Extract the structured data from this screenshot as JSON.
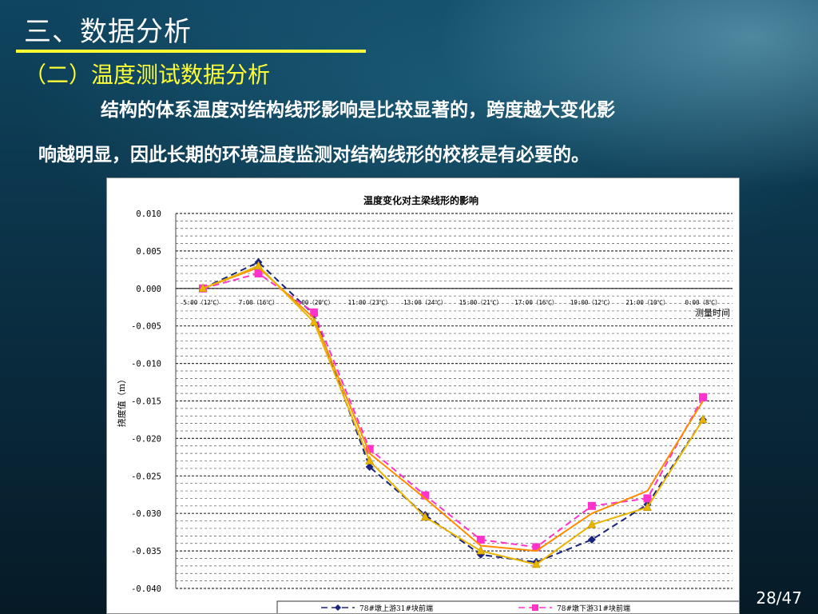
{
  "slide": {
    "section_title": "三、数据分析",
    "subsection_title": "（二）温度测试数据分析",
    "paragraph_line1": "结构的体系温度对结构线形影响是比较显著的，跨度越大变化影",
    "paragraph_line2": "响越明显，因此长期的环境温度监测对结构线形的校核是有必要的。",
    "page_number": "28/47"
  },
  "chart_data": {
    "type": "line",
    "title": "温度变化对主梁线形的影响",
    "xlabel": "测量时间",
    "ylabel": "挠度值（m）",
    "ylim": [
      -0.04,
      0.01
    ],
    "yticks": [
      0.01,
      0.005,
      0.0,
      -0.005,
      -0.01,
      -0.015,
      -0.02,
      -0.025,
      -0.03,
      -0.035,
      -0.04
    ],
    "ytick_labels": [
      "0.010",
      "0.005",
      "0.000",
      "-0.005",
      "-0.010",
      "-0.015",
      "-0.020",
      "-0.025",
      "-0.030",
      "-0.035",
      "-0.040"
    ],
    "categories": [
      "5:00（12℃）",
      "7:00（16℃）",
      "9:00（20℃）",
      "11:00（23℃）",
      "13:00（24℃）",
      "15:00（21℃）",
      "17:00（16℃）",
      "19:00（12℃）",
      "21:00（10℃）",
      "0:00（8℃）"
    ],
    "grid": true,
    "legend_position": "bottom",
    "series": [
      {
        "name": "78#墩上游31#块前端",
        "color": "#1a237e",
        "dash": "8,5",
        "marker": "diamond",
        "values": [
          0.0,
          0.0035,
          -0.0035,
          -0.0238,
          -0.0302,
          -0.0355,
          -0.0365,
          -0.0335,
          -0.0288,
          -0.0175
        ]
      },
      {
        "name": "78#墩下游31#块前端",
        "color": "#ff33cc",
        "dash": "8,5",
        "marker": "square",
        "values": [
          0.0,
          0.002,
          -0.0032,
          -0.0214,
          -0.0276,
          -0.0335,
          -0.0345,
          -0.029,
          -0.028,
          -0.0145
        ]
      },
      {
        "name": "",
        "color": "#ff8c00",
        "dash": "",
        "marker": "none",
        "values": [
          0.0,
          0.0028,
          -0.004,
          -0.022,
          -0.028,
          -0.0343,
          -0.035,
          -0.03,
          -0.027,
          -0.015
        ]
      },
      {
        "name": "",
        "color": "#e8b400",
        "dash": "",
        "marker": "triangle",
        "values": [
          0.0,
          0.003,
          -0.0045,
          -0.023,
          -0.0305,
          -0.035,
          -0.0368,
          -0.0315,
          -0.0292,
          -0.0175
        ]
      }
    ]
  }
}
